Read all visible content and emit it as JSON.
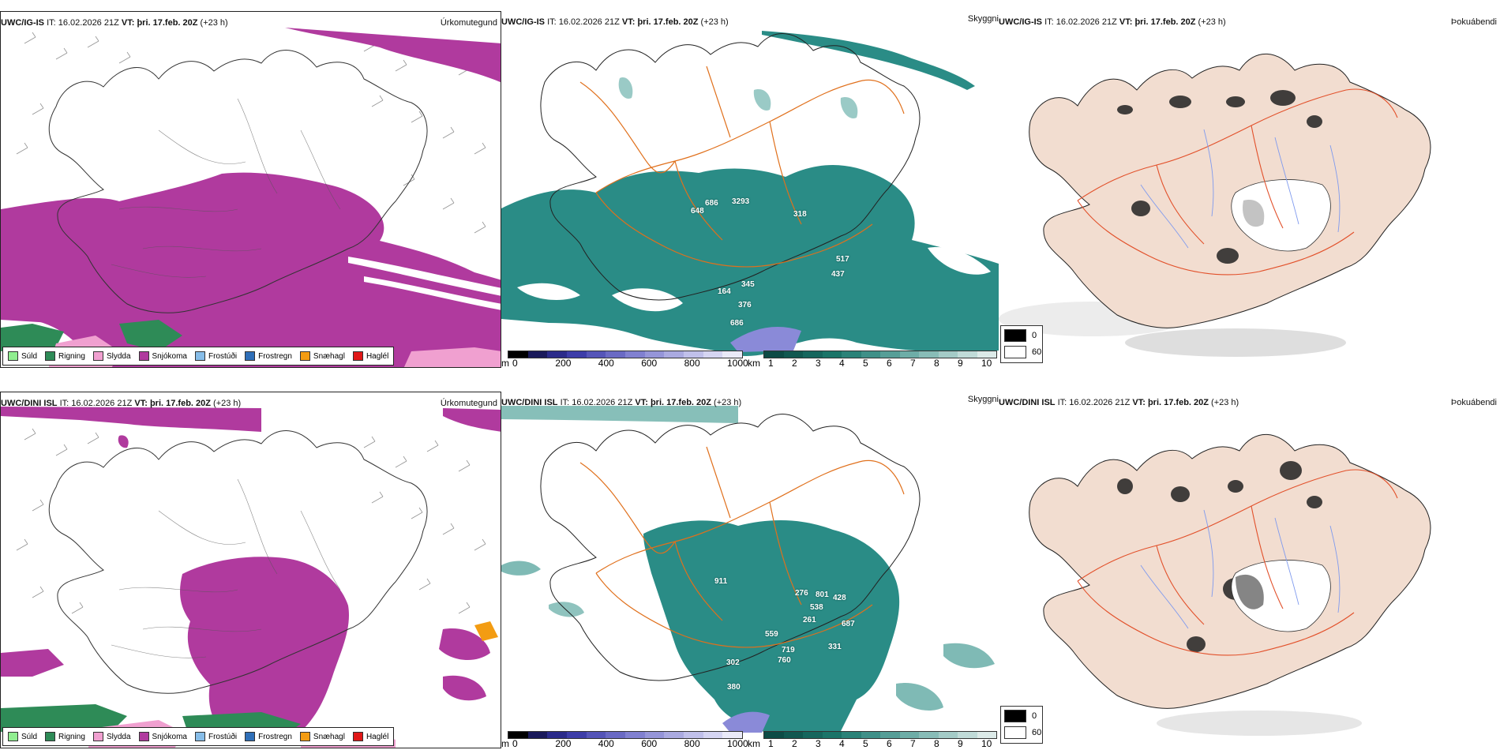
{
  "rows": [
    {
      "model": "UWC/IG-IS",
      "it_label": "IT:",
      "it_value": "16.02.2026 21Z",
      "vt_label": "VT:",
      "vt_value": "þri. 17.feb. 20Z",
      "lead": "(+23 h)",
      "visibility_labels": [
        "648",
        "686",
        "3293",
        "318",
        "517",
        "437",
        "164",
        "345",
        "376",
        "686"
      ]
    },
    {
      "model": "UWC/DINI ISL",
      "it_label": "IT:",
      "it_value": "16.02.2026 21Z",
      "vt_label": "VT:",
      "vt_value": "þri. 17.feb. 20Z",
      "lead": "(+23 h)",
      "visibility_labels": [
        "911",
        "276",
        "801",
        "428",
        "538",
        "261",
        "687",
        "559",
        "719",
        "760",
        "331",
        "302",
        "380"
      ]
    }
  ],
  "panel_titles": {
    "precip": "Úrkomutegund",
    "visibility": "Skyggni",
    "fog": "Þokuábendi"
  },
  "precip_legend": [
    {
      "label": "Súld",
      "color": "#90ee90"
    },
    {
      "label": "Rigning",
      "color": "#2e8b57"
    },
    {
      "label": "Slydda",
      "color": "#f0a0d0"
    },
    {
      "label": "Snjókoma",
      "color": "#b03a9e"
    },
    {
      "label": "Frostúði",
      "color": "#87bde8"
    },
    {
      "label": "Frostregn",
      "color": "#2f6fb8"
    },
    {
      "label": "Snæhagl",
      "color": "#f39c12"
    },
    {
      "label": "Haglél",
      "color": "#e01818"
    }
  ],
  "elev_scale": {
    "unit": "m",
    "ticks": [
      "0",
      "200",
      "400",
      "600",
      "800",
      "1000"
    ],
    "colors": [
      "#000000",
      "#1a1a5a",
      "#2b2b8a",
      "#3d3da8",
      "#5555b8",
      "#6a6ac4",
      "#8080d0",
      "#9595d8",
      "#aaaae0",
      "#c0c0ea",
      "#d5d5f2",
      "#eaeaf8"
    ]
  },
  "vis_scale": {
    "unit": "km",
    "ticks": [
      "1",
      "2",
      "3",
      "4",
      "5",
      "6",
      "7",
      "8",
      "9",
      "10"
    ],
    "colors": [
      "#0d4b45",
      "#115850",
      "#16665d",
      "#1b7468",
      "#2b8278",
      "#3f9088",
      "#569e97",
      "#6eada7",
      "#88bcb7",
      "#a4cbc7",
      "#c0dbd8",
      "#dceae8"
    ]
  },
  "fog_legend": {
    "high": "0",
    "low": "60",
    "high_color": "#000000",
    "low_color": "#ffffff"
  },
  "colors": {
    "snow": "#b03a9e",
    "rain": "#2e8b57",
    "sleet": "#f0a0d0",
    "drizzle": "#90ee90",
    "teal": "#2a8c86",
    "road": "#e0701c",
    "land": "#f2ddd0",
    "river": "#7f9aee"
  }
}
